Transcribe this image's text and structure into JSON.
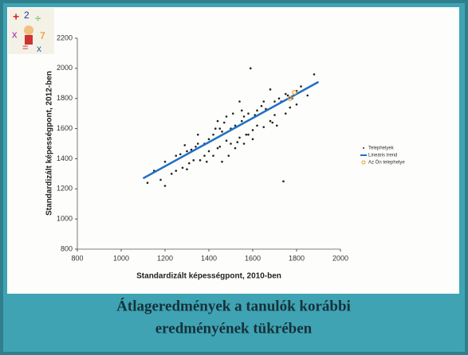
{
  "chart_data": {
    "type": "scatter",
    "xlabel": "Standardizált képességpont, 2010-ben",
    "ylabel": "Standardizált képességpont, 2012-ben",
    "xlim": [
      800,
      2000
    ],
    "xticks": [
      800,
      1000,
      1200,
      1400,
      1600,
      1800,
      2000
    ],
    "ylim": [
      800,
      2200
    ],
    "yticks": [
      800,
      1000,
      1200,
      1400,
      1600,
      1800,
      2000,
      2200
    ],
    "legend": "right",
    "series": [
      {
        "name": "Telephelyek",
        "color": "#222222",
        "marker": "dot",
        "x": [
          1500,
          1450,
          1550,
          1420,
          1580,
          1380,
          1620,
          1350,
          1650,
          1300,
          1700,
          1250,
          1750,
          1200,
          1800,
          1480,
          1520,
          1460,
          1540,
          1440,
          1560,
          1400,
          1600,
          1360,
          1640,
          1320,
          1680,
          1280,
          1720,
          1230,
          1770,
          1510,
          1490,
          1530,
          1470,
          1570,
          1430,
          1610,
          1390,
          1660,
          1340,
          1690,
          1310,
          1730,
          1270,
          1760,
          1180,
          1820,
          1150,
          1850,
          1480,
          1520,
          1500,
          1450,
          1550,
          1600,
          1400,
          1650,
          1350,
          1700,
          1300,
          1750,
          1250,
          1800,
          1200,
          1880,
          1120,
          1560,
          1440,
          1620,
          1380,
          1540,
          1460,
          1580,
          1420,
          1680,
          1330,
          1710,
          1290,
          1780,
          1740,
          1590
        ],
        "y": [
          1600,
          1480,
          1650,
          1560,
          1560,
          1420,
          1720,
          1500,
          1610,
          1330,
          1780,
          1420,
          1700,
          1380,
          1850,
          1520,
          1620,
          1580,
          1540,
          1470,
          1680,
          1530,
          1590,
          1390,
          1750,
          1460,
          1650,
          1340,
          1800,
          1300,
          1740,
          1700,
          1420,
          1510,
          1640,
          1560,
          1600,
          1690,
          1380,
          1730,
          1480,
          1640,
          1370,
          1780,
          1430,
          1820,
          1260,
          1880,
          1320,
          1820,
          1680,
          1470,
          1500,
          1600,
          1720,
          1530,
          1450,
          1780,
          1560,
          1690,
          1450,
          1830,
          1320,
          1760,
          1220,
          1960,
          1240,
          1500,
          1650,
          1620,
          1500,
          1780,
          1380,
          1700,
          1420,
          1860,
          1390,
          1620,
          1490,
          1800,
          1250,
          2000
        ]
      },
      {
        "name": "Lineáris trend",
        "color": "#1f6fc4",
        "marker": "line",
        "x": [
          1100,
          1900
        ],
        "y": [
          1270,
          1910
        ]
      },
      {
        "name": "Az Ön telephelye",
        "color": "#e8a030",
        "marker": "circle",
        "x": [
          1770,
          1790
        ],
        "y": [
          1800,
          1840
        ]
      }
    ]
  },
  "caption": [
    "Átlageredmények a tanulók korábbi",
    "eredményének tükrében"
  ]
}
